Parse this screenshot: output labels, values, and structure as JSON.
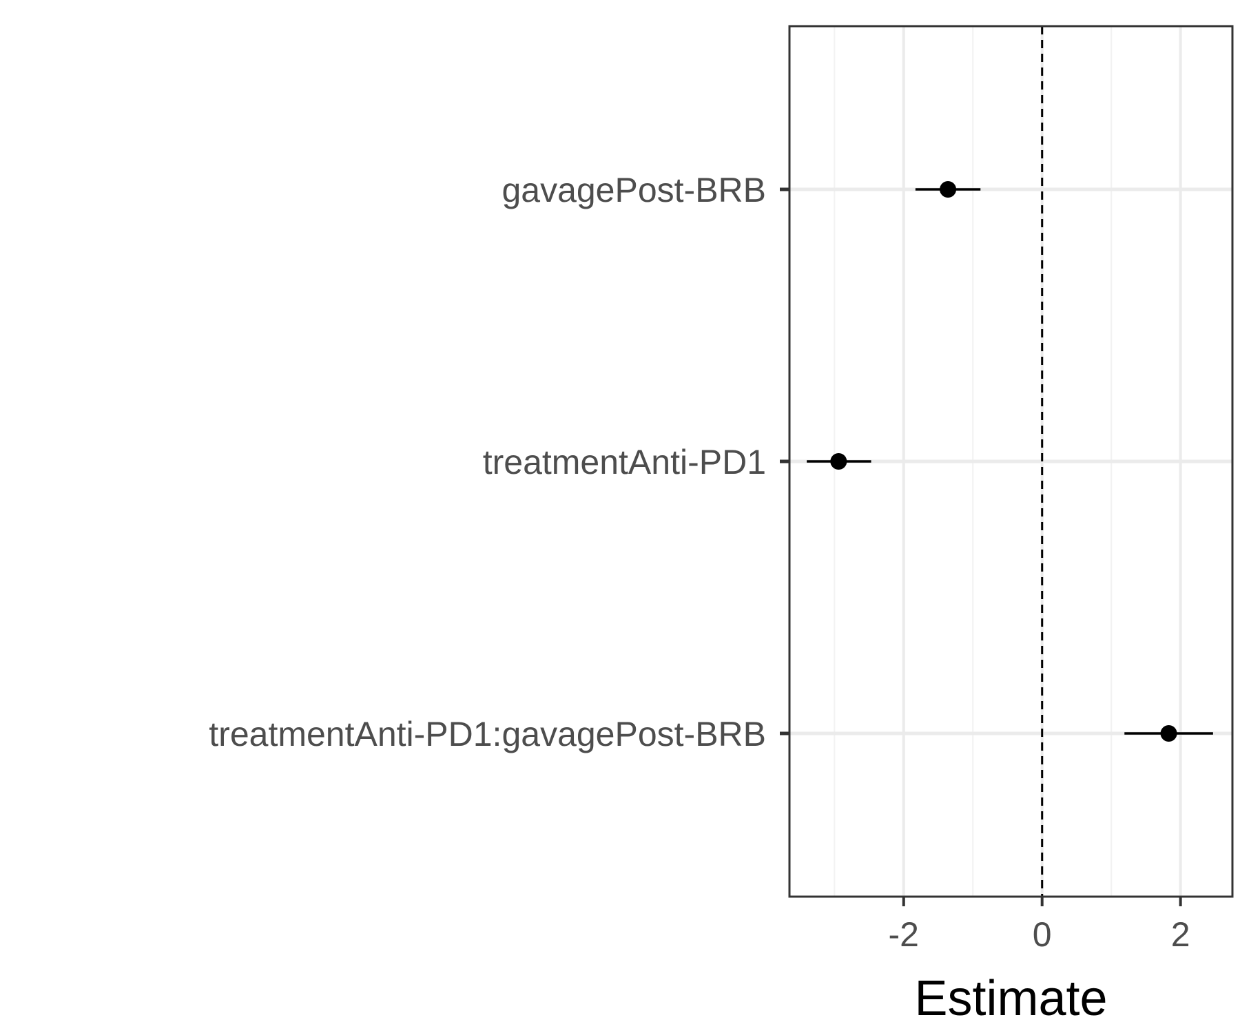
{
  "chart_data": {
    "type": "scatter",
    "subtype": "coefficient-plot",
    "title": "",
    "xlabel": "Estimate",
    "ylabel": "",
    "xlim": [
      -3.65,
      2.75
    ],
    "x_ticks": [
      -2,
      0,
      2
    ],
    "x_tick_labels": [
      "-2",
      "0",
      "2"
    ],
    "reference_line": {
      "x": 0,
      "style": "dashed"
    },
    "grid": true,
    "categories": [
      "gavagePost-BRB",
      "treatmentAnti-PD1",
      "treatmentAnti-PD1:gavagePost-BRB"
    ],
    "series": [
      {
        "estimates": [
          -1.36,
          -2.94,
          1.83
        ],
        "ci_low": [
          -1.83,
          -3.4,
          1.19
        ],
        "ci_high": [
          -0.89,
          -2.47,
          2.47
        ]
      }
    ],
    "colors": {
      "point": "#000000",
      "grid_major": "#ebebeb",
      "grid_minor": "#f2f2f2",
      "panel_border": "#333333",
      "tick_text": "#4d4d4d"
    }
  }
}
